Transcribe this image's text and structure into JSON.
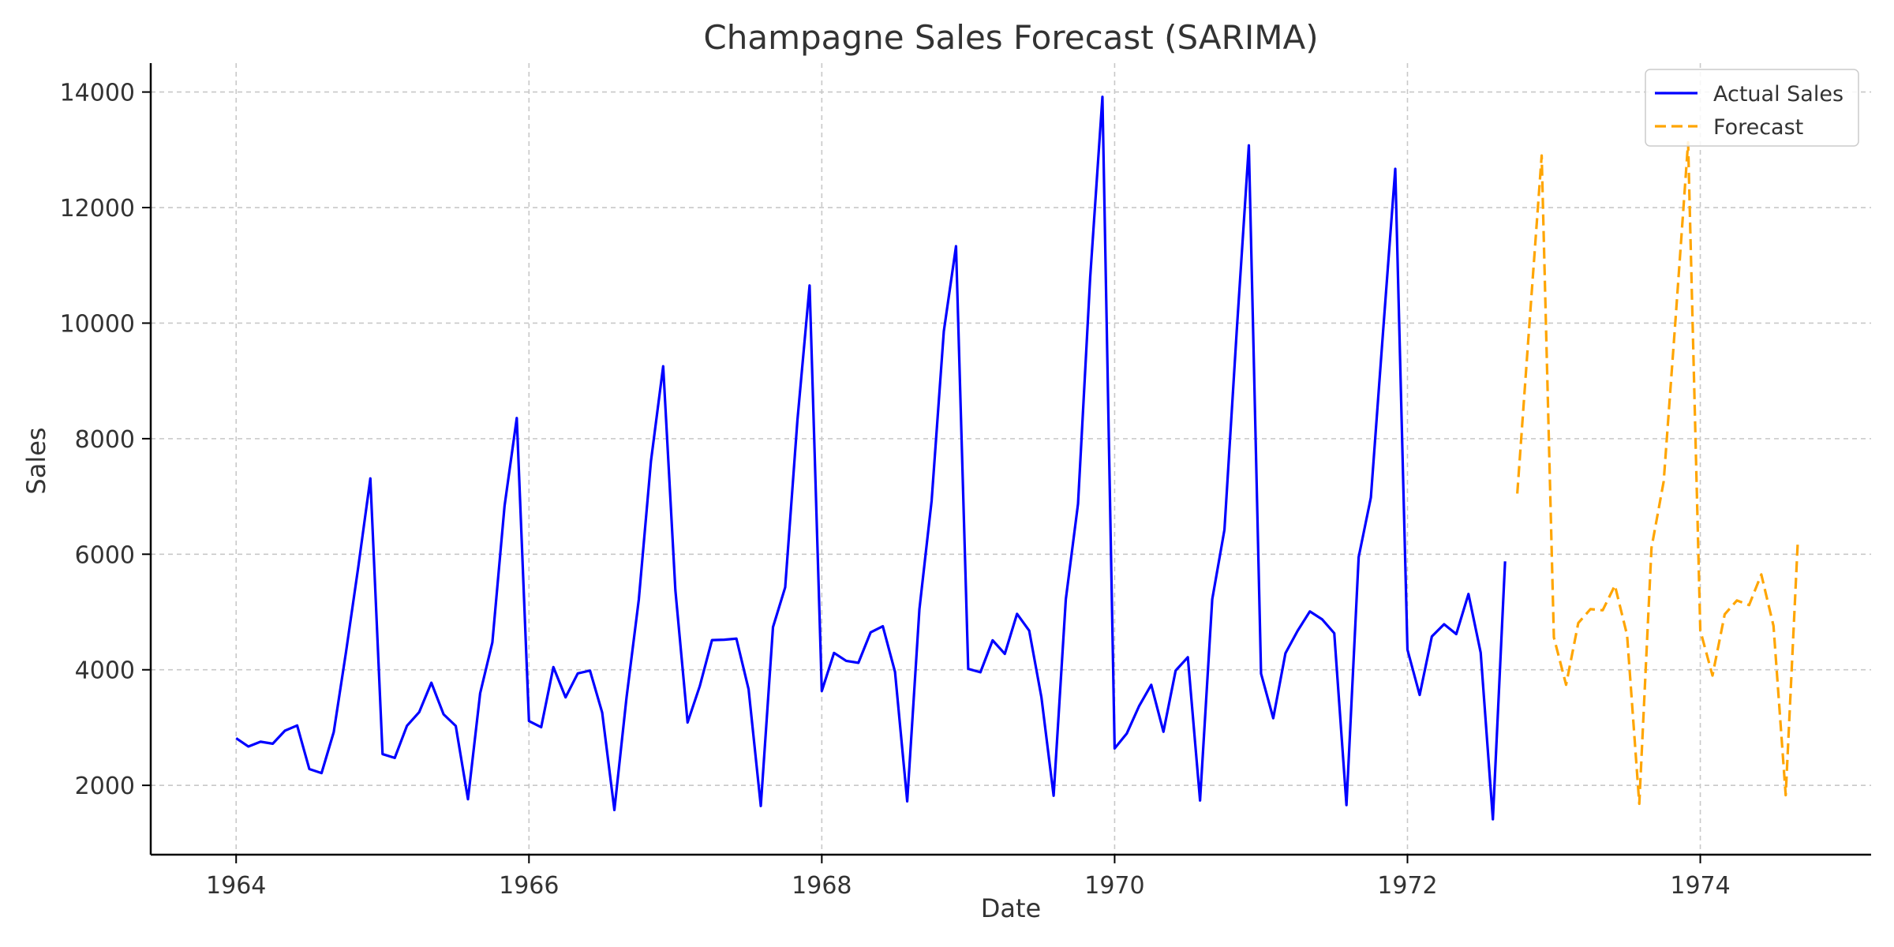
{
  "chart_data": {
    "type": "line",
    "title": "Champagne Sales Forecast (SARIMA)",
    "xlabel": "Date",
    "ylabel": "Sales",
    "xlim": [
      "1963-06",
      "1975-03"
    ],
    "ylim": [
      800,
      14500
    ],
    "x_ticks": [
      {
        "date": "1964-01",
        "label": "1964"
      },
      {
        "date": "1966-01",
        "label": "1966"
      },
      {
        "date": "1968-01",
        "label": "1968"
      },
      {
        "date": "1970-01",
        "label": "1970"
      },
      {
        "date": "1972-01",
        "label": "1972"
      },
      {
        "date": "1974-01",
        "label": "1974"
      }
    ],
    "y_ticks": [
      {
        "value": 2000,
        "label": "2000"
      },
      {
        "value": 4000,
        "label": "4000"
      },
      {
        "value": 6000,
        "label": "6000"
      },
      {
        "value": 8000,
        "label": "8000"
      },
      {
        "value": 10000,
        "label": "10000"
      },
      {
        "value": 12000,
        "label": "12000"
      },
      {
        "value": 14000,
        "label": "14000"
      }
    ],
    "grid": true,
    "legend_position": "top-right",
    "series": [
      {
        "name": "Actual Sales",
        "color": "#0000ff",
        "style": "solid",
        "start": "1964-01",
        "values": [
          2815,
          2672,
          2755,
          2721,
          2946,
          3036,
          2282,
          2212,
          2922,
          4301,
          5764,
          7312,
          2541,
          2475,
          3031,
          3266,
          3776,
          3230,
          3028,
          1759,
          3595,
          4474,
          6838,
          8357,
          3113,
          3006,
          4047,
          3523,
          3937,
          3986,
          3260,
          1573,
          3528,
          5211,
          7614,
          9254,
          5375,
          3088,
          3718,
          4514,
          4520,
          4539,
          3663,
          1643,
          4739,
          5428,
          8314,
          10651,
          3633,
          4292,
          4154,
          4121,
          4647,
          4753,
          3965,
          1723,
          5048,
          6922,
          9858,
          11331,
          4016,
          3957,
          4510,
          4276,
          4968,
          4677,
          3523,
          1821,
          5222,
          6872,
          10803,
          13916,
          2639,
          2899,
          3370,
          3740,
          2927,
          3986,
          4217,
          1738,
          5221,
          6424,
          9842,
          13076,
          3934,
          3162,
          4286,
          4676,
          5010,
          4874,
          4633,
          1659,
          5951,
          6981,
          9851,
          12670,
          4348,
          3564,
          4577,
          4788,
          4618,
          5312,
          4298,
          1413,
          5877
        ]
      },
      {
        "name": "Forecast",
        "color": "#ffa500",
        "style": "dashed",
        "start": "1972-10",
        "values": [
          7050,
          10000,
          12900,
          4560,
          3740,
          4810,
          5050,
          5030,
          5460,
          4600,
          1680,
          6110,
          7260,
          10150,
          13130,
          4680,
          3900,
          4960,
          5200,
          5120,
          5650,
          4760,
          1830,
          6260
        ]
      }
    ]
  }
}
